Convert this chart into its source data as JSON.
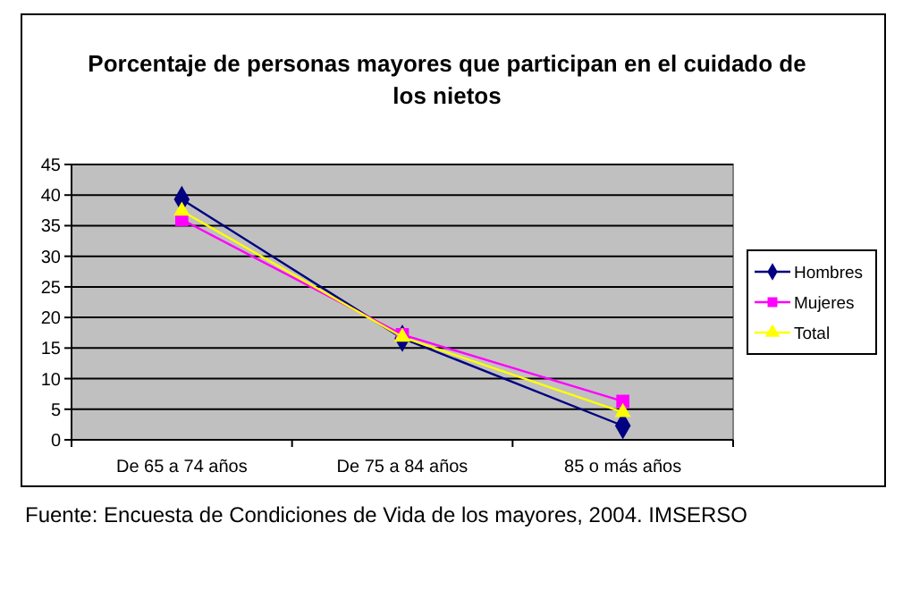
{
  "chart_data": {
    "type": "line",
    "title": "Porcentaje de personas mayores que participan en el cuidado de los nietos",
    "categories": [
      "De 65 a 74 años",
      "De 75 a 84 años",
      "85 o más años"
    ],
    "series": [
      {
        "name": "Hombres",
        "color": "#000080",
        "values": [
          39.3,
          16.6,
          2.3
        ],
        "marker": "diamond"
      },
      {
        "name": "Mujeres",
        "color": "#ff00ff",
        "values": [
          36.0,
          17.2,
          6.3
        ],
        "marker": "square"
      },
      {
        "name": "Total",
        "color": "#ffff00",
        "values": [
          37.4,
          16.8,
          4.5
        ],
        "marker": "triangle"
      }
    ],
    "ylim": [
      0,
      45
    ],
    "yticks": [
      0,
      5,
      10,
      15,
      20,
      25,
      30,
      35,
      40,
      45
    ],
    "grid": "y",
    "legend": "right",
    "annotations": [
      "Fuente: Encuesta de Condiciones de Vida de los mayores, 2004. IMSERSO"
    ]
  }
}
